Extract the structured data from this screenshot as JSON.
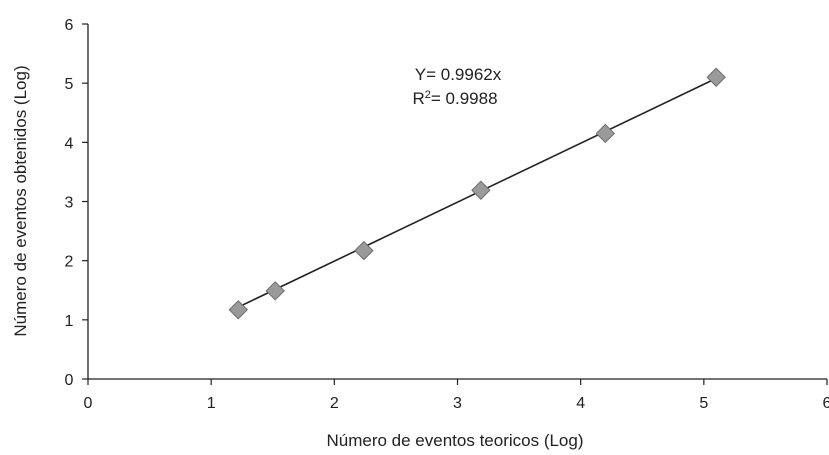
{
  "chart_data": {
    "type": "scatter",
    "title": "",
    "xlabel": "Número de eventos teoricos (Log)",
    "ylabel": "Número de eventos obtenidos (Log)",
    "xlim": [
      0,
      6
    ],
    "ylim": [
      0,
      6
    ],
    "xticks": [
      "0",
      "1",
      "2",
      "3",
      "4",
      "5",
      "6"
    ],
    "yticks": [
      "0",
      "1",
      "2",
      "3",
      "4",
      "5",
      "6"
    ],
    "grid": false,
    "legend": "none",
    "series": [
      {
        "x": [
          1.22,
          1.52,
          2.24,
          3.19,
          4.2,
          5.1
        ],
        "y": [
          1.17,
          1.49,
          2.17,
          3.19,
          4.15,
          5.1
        ],
        "marker": "diamond",
        "color": "#9a9a9a"
      }
    ],
    "trendline": {
      "slope": 0.9962,
      "x_range": [
        1.22,
        5.1
      ],
      "color": "#222222"
    },
    "annotations": {
      "equation_prefix": "Y= 0.9962x",
      "r2_prefix": "R",
      "r2_sup": "2",
      "r2_value": "= 0.9988"
    }
  }
}
